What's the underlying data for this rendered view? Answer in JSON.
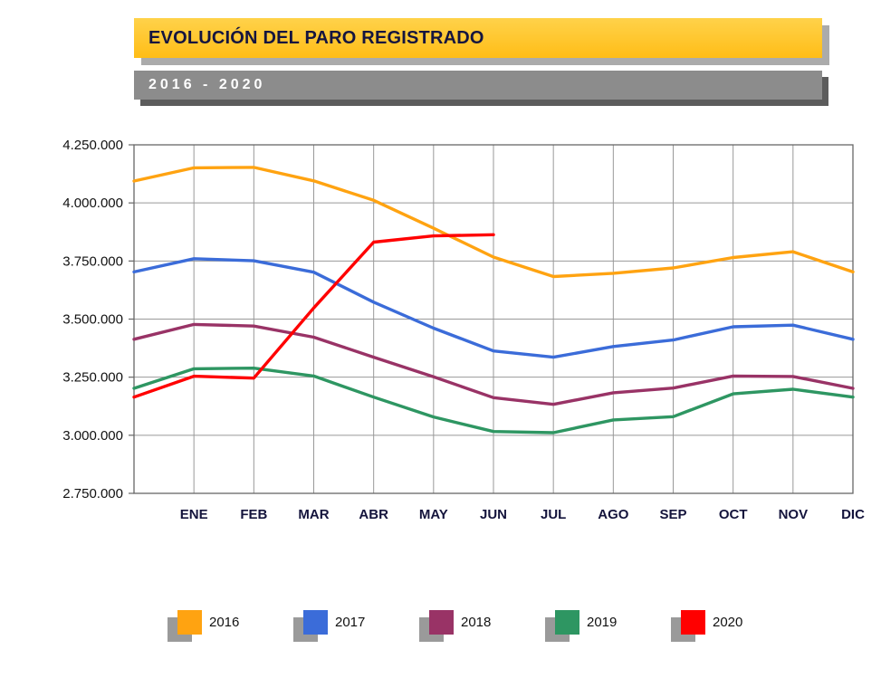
{
  "chart_data": {
    "type": "line",
    "title": "EVOLUCIÓN DEL PARO REGISTRADO",
    "subtitle": "2016 - 2020",
    "categories": [
      "ENE",
      "FEB",
      "MAR",
      "ABR",
      "MAY",
      "JUN",
      "JUL",
      "AGO",
      "SEP",
      "OCT",
      "NOV",
      "DIC"
    ],
    "y_axis": {
      "min": 2750000,
      "max": 4250000,
      "step": 250000,
      "tick_labels": [
        "2.750.000",
        "3.000.000",
        "3.250.000",
        "3.500.000",
        "3.750.000",
        "4.000.000",
        "4.250.000"
      ]
    },
    "grid": true,
    "legend_position": "bottom",
    "series": [
      {
        "name": "2016",
        "color": "#ffa311",
        "start_edge_value": 4094000,
        "values": [
          4151000,
          4153000,
          4095000,
          4011000,
          3891000,
          3767000,
          3683000,
          3697000,
          3720000,
          3765000,
          3790000,
          3703000
        ]
      },
      {
        "name": "2017",
        "color": "#3b6cd9",
        "start_edge_value": 3703000,
        "values": [
          3760000,
          3751000,
          3702000,
          3573000,
          3461000,
          3363000,
          3336000,
          3382000,
          3410000,
          3467000,
          3474000,
          3413000
        ]
      },
      {
        "name": "2018",
        "color": "#993366",
        "start_edge_value": 3413000,
        "values": [
          3477000,
          3470000,
          3422000,
          3336000,
          3252000,
          3162000,
          3133000,
          3183000,
          3203000,
          3255000,
          3253000,
          3202000
        ]
      },
      {
        "name": "2019",
        "color": "#2e9662",
        "start_edge_value": 3202000,
        "values": [
          3286000,
          3289000,
          3255000,
          3164000,
          3079000,
          3016000,
          3011000,
          3066000,
          3080000,
          3178000,
          3198000,
          3164000
        ]
      },
      {
        "name": "2020",
        "color": "#ff0000",
        "start_edge_value": 3164000,
        "values": [
          3254000,
          3246000,
          3548000,
          3831000,
          3858000,
          3863000
        ]
      }
    ],
    "colors": {
      "title_banner": "#ffc125",
      "subtitle_banner": "#8c8c8c",
      "grid": "#999999",
      "plot_border": "#666666"
    }
  }
}
